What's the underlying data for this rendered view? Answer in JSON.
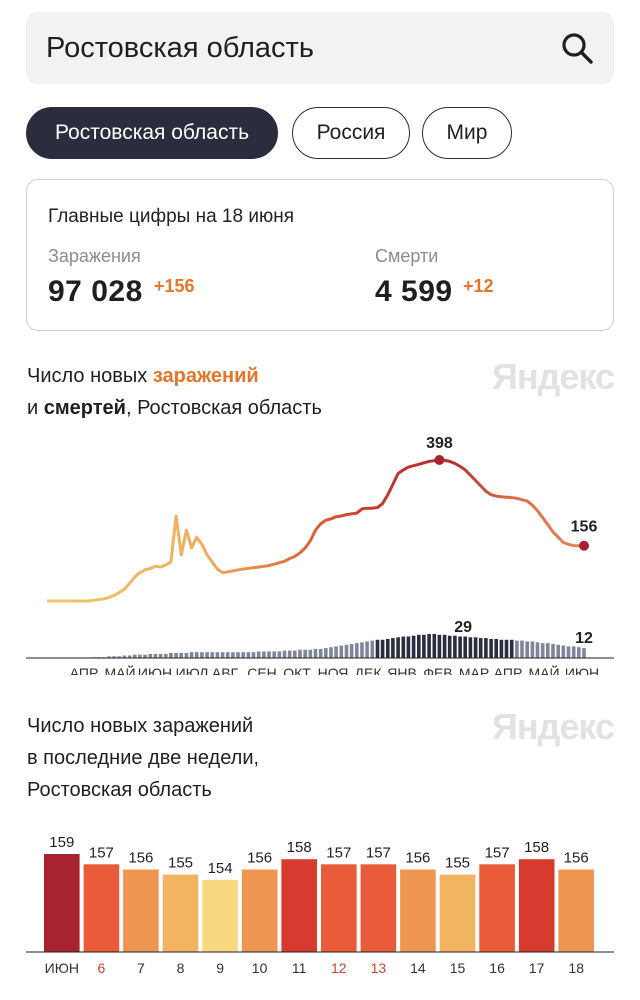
{
  "search": {
    "value": "Ростовская область"
  },
  "tabs": [
    {
      "label": "Ростовская область",
      "active": true
    },
    {
      "label": "Россия",
      "active": false
    },
    {
      "label": "Мир",
      "active": false
    }
  ],
  "summary": {
    "title": "Главные цифры на 18 июня",
    "infections": {
      "label": "Заражения",
      "value": "97 028",
      "delta": "+156"
    },
    "deaths": {
      "label": "Смерти",
      "value": "4 599",
      "delta": "+12"
    }
  },
  "chart1": {
    "title_part1": "Число новых ",
    "title_highlight1": "заражений",
    "title_part2": "и ",
    "title_highlight2": "смертей",
    "title_part3": ", Ростовская область",
    "watermark": "Яндекс"
  },
  "chart2": {
    "title_line1": "Число новых заражений",
    "title_line2": "в последние две недели,",
    "title_line3": "Ростовская область",
    "watermark": "Яндекс"
  },
  "chart_data": [
    {
      "type": "line",
      "x_tick_labels": [
        "АПР",
        "МАЙ",
        "ИЮН",
        "ИЮЛ",
        "АВГ",
        "СЕН",
        "ОКТ",
        "НОЯ",
        "ДЕК",
        "ЯНВ",
        "ФЕВ",
        "МАР",
        "АПР",
        "МАЙ",
        "ИЮН"
      ],
      "series": [
        {
          "values": [
            0,
            0,
            0,
            0,
            0,
            0,
            0,
            0,
            0,
            2,
            4,
            6,
            10,
            16,
            24,
            34,
            50,
            68,
            80,
            88,
            92,
            98,
            96,
            102,
            110,
            240,
            130,
            200,
            150,
            180,
            160,
            130,
            110,
            90,
            80,
            82,
            85,
            88,
            90,
            92,
            94,
            96,
            98,
            100,
            104,
            108,
            112,
            120,
            126,
            136,
            150,
            170,
            200,
            218,
            228,
            232,
            238,
            240,
            244,
            246,
            248,
            260,
            262,
            262,
            264,
            275,
            300,
            330,
            360,
            370,
            378,
            382,
            386,
            390,
            394,
            396,
            398,
            397,
            394,
            388,
            380,
            370,
            355,
            340,
            325,
            310,
            300,
            296,
            294,
            293,
            292,
            290,
            286,
            282,
            270,
            255,
            235,
            215,
            195,
            180,
            165,
            160,
            156,
            156,
            156
          ],
          "peak_label": "398",
          "last_label": "156"
        },
        {
          "values": [
            0,
            0,
            0,
            0,
            0,
            0,
            0,
            0,
            0,
            1,
            1,
            1,
            2,
            2,
            2,
            3,
            3,
            4,
            4,
            4,
            5,
            5,
            5,
            5,
            6,
            6,
            6,
            6,
            7,
            7,
            7,
            7,
            7,
            7,
            7,
            7,
            7,
            7,
            7,
            7,
            7,
            8,
            8,
            8,
            8,
            8,
            9,
            9,
            9,
            10,
            10,
            10,
            11,
            11,
            12,
            13,
            14,
            15,
            16,
            17,
            18,
            19,
            20,
            21,
            22,
            22,
            23,
            24,
            25,
            26,
            26,
            27,
            28,
            28,
            29,
            29,
            28,
            28,
            27,
            27,
            26,
            26,
            25,
            25,
            24,
            24,
            23,
            23,
            22,
            22,
            22,
            21,
            21,
            20,
            20,
            19,
            18,
            18,
            17,
            16,
            15,
            14,
            14,
            13,
            12
          ],
          "peak_label": "29",
          "last_label": "12"
        }
      ]
    },
    {
      "type": "bar",
      "categories": [
        "ИЮН",
        "6",
        "7",
        "8",
        "9",
        "10",
        "11",
        "12",
        "13",
        "14",
        "15",
        "16",
        "17",
        "18"
      ],
      "values": [
        159,
        157,
        156,
        155,
        154,
        156,
        158,
        157,
        157,
        156,
        155,
        157,
        158,
        156
      ],
      "weekend_days": [
        "6",
        "12",
        "13"
      ],
      "colors": {
        "159": "#a82330",
        "158": "#d73a2e",
        "157": "#ea5b3a",
        "156": "#ef9752",
        "155": "#f2b463",
        "154": "#f9d97f"
      }
    }
  ]
}
